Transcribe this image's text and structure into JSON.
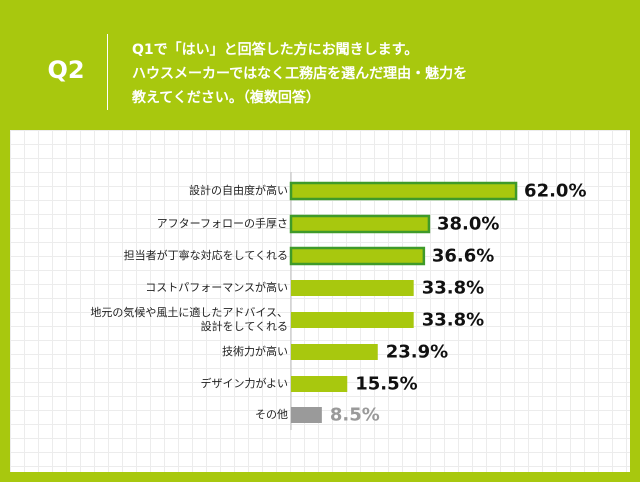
{
  "header": {
    "label": "Q2",
    "question": [
      "Q1で「はい」と回答した方にお聞きします。",
      "ハウスメーカーではなく工務店を選んだ理由・魅力を",
      "教えてください。（複数回答）"
    ]
  },
  "chart_data": {
    "type": "bar",
    "orientation": "horizontal",
    "categories": [
      "設計の自由度が高い",
      "アフターフォローの手厚さ",
      "担当者が丁寧な対応をしてくれる",
      "コストパフォーマンスが高い",
      "地元の気候や風土に適したアドバイス、\n設計をしてくれる",
      "技術力が高い",
      "デザイン力がよい",
      "その他"
    ],
    "values": [
      62.0,
      38.0,
      36.6,
      33.8,
      33.8,
      23.9,
      15.5,
      8.5
    ],
    "value_labels": [
      "62.0%",
      "38.0%",
      "36.6%",
      "33.8%",
      "33.8%",
      "23.9%",
      "15.5%",
      "8.5%"
    ],
    "colors": [
      "#a8c80e",
      "#a8c80e",
      "#a8c80e",
      "#a8c80e",
      "#a8c80e",
      "#a8c80e",
      "#a8c80e",
      "#9a9a9a"
    ],
    "edge_colors": [
      "#3f9a2a",
      "#3f9a2a",
      "#3f9a2a",
      null,
      null,
      null,
      null,
      null
    ],
    "label_colors": [
      "#111111",
      "#111111",
      "#111111",
      "#111111",
      "#111111",
      "#111111",
      "#111111",
      "#9a9a9a"
    ]
  }
}
